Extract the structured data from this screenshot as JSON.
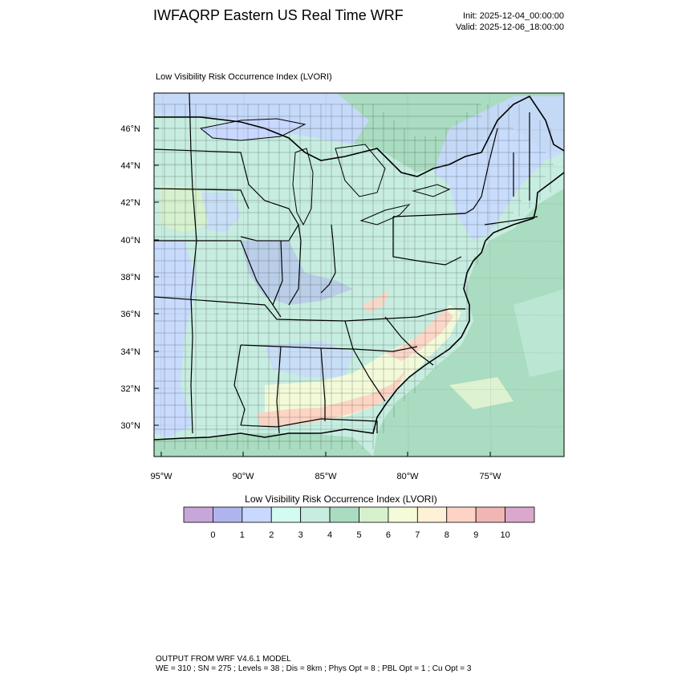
{
  "header": {
    "title": "IWFAQRP Eastern US Real Time WRF",
    "init": "Init: 2025-12-04_00:00:00",
    "valid": "Valid: 2025-12-06_18:00:00"
  },
  "map": {
    "field_title": "Low Visibility Risk Occurrence Index   (LVORI)",
    "lat_labels": [
      "46°N",
      "44°N",
      "42°N",
      "40°N",
      "38°N",
      "36°N",
      "34°N",
      "32°N",
      "30°N"
    ],
    "lon_labels": [
      "95°W",
      "90°W",
      "85°W",
      "80°W",
      "75°W"
    ]
  },
  "colorbar": {
    "title": "Low Visibility Risk Occurrence Index  (LVORI)",
    "colors": [
      "#c7a6da",
      "#b0b4ee",
      "#c8d8ff",
      "#d2fbf2",
      "#c6ede0",
      "#a9dcc0",
      "#d7f1cc",
      "#f4fbd8",
      "#fff1d6",
      "#fcd3c4",
      "#f1b6b3",
      "#dba7cc"
    ],
    "labels": [
      "0",
      "1",
      "2",
      "3",
      "4",
      "5",
      "6",
      "7",
      "8",
      "9",
      "10"
    ]
  },
  "footer": {
    "line1": "OUTPUT FROM WRF V4.6.1 MODEL",
    "line2": "WE = 310 ; SN = 275 ; Levels = 38 ; Dis = 8km ; Phys Opt = 8 ; PBL Opt = 1 ; Cu Opt = 3"
  }
}
